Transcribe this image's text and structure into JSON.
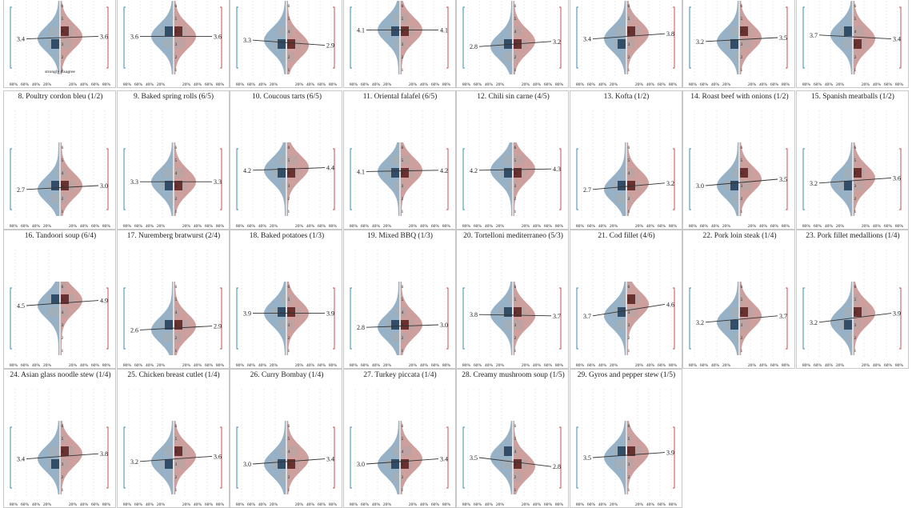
{
  "labels": {
    "strongly_disagree": "strongly disagree"
  },
  "x_tick_labels": [
    "80%",
    "60%",
    "40%",
    "20%",
    "20%",
    "40%",
    "60%",
    "80%"
  ],
  "likert_ticks": [
    "1",
    "2",
    "3",
    "4",
    "5",
    "6"
  ],
  "colors": {
    "left_fill": "#7d9fb9",
    "left_bar": "#1f3c58",
    "left_bracket": "#3a8bb2",
    "right_fill": "#c08784",
    "right_bar": "#5c1d1d",
    "right_bracket": "#c0504d"
  },
  "chart_data": {
    "type": "violin-likert-small-multiples",
    "panels": [
      {
        "title": "",
        "left_mean": "3.4",
        "right_mean": "3.6",
        "l": 3.4,
        "r": 3.6,
        "cut": "top"
      },
      {
        "title": "",
        "left_mean": "3.6",
        "right_mean": "3.6",
        "l": 3.6,
        "r": 3.6,
        "cut": "top"
      },
      {
        "title": "",
        "left_mean": "3.3",
        "right_mean": "2.9",
        "l": 3.3,
        "r": 2.9,
        "cut": "top"
      },
      {
        "title": "",
        "left_mean": "4.1",
        "right_mean": "4.1",
        "l": 4.1,
        "r": 4.1,
        "cut": "top"
      },
      {
        "title": "",
        "left_mean": "2.8",
        "right_mean": "3.2",
        "l": 2.8,
        "r": 3.2,
        "cut": "top"
      },
      {
        "title": "",
        "left_mean": "3.4",
        "right_mean": "3.8",
        "l": 3.4,
        "r": 3.8,
        "cut": "top"
      },
      {
        "title": "",
        "left_mean": "3.2",
        "right_mean": "3.5",
        "l": 3.2,
        "r": 3.5,
        "cut": "top"
      },
      {
        "title": "",
        "left_mean": "3.7",
        "right_mean": "3.4",
        "l": 3.7,
        "r": 3.4,
        "cut": "top"
      },
      {
        "title": "8. Poultry cordon bleu (1/2)",
        "left_mean": "2.7",
        "right_mean": "3.0",
        "l": 2.7,
        "r": 3.0
      },
      {
        "title": "9. Baked spring rolls (6/5)",
        "left_mean": "3.3",
        "right_mean": "3.3",
        "l": 3.3,
        "r": 3.3
      },
      {
        "title": "10. Coucous tarts (6/5)",
        "left_mean": "4.2",
        "right_mean": "4.4",
        "l": 4.2,
        "r": 4.4
      },
      {
        "title": "11. Oriental falafel (6/5)",
        "left_mean": "4.1",
        "right_mean": "4.2",
        "l": 4.1,
        "r": 4.2
      },
      {
        "title": "12. Chili sin carne (4/5)",
        "left_mean": "4.2",
        "right_mean": "4.3",
        "l": 4.2,
        "r": 4.3
      },
      {
        "title": "13. Kofta (1/2)",
        "left_mean": "2.7",
        "right_mean": "3.2",
        "l": 2.7,
        "r": 3.2
      },
      {
        "title": "14. Roast beef with onions (1/2)",
        "left_mean": "3.0",
        "right_mean": "3.5",
        "l": 3.0,
        "r": 3.5
      },
      {
        "title": "15. Spanish meatballs (1/2)",
        "left_mean": "3.2",
        "right_mean": "3.6",
        "l": 3.2,
        "r": 3.6
      },
      {
        "title": "16. Tandoori soup (6/4)",
        "left_mean": "4.5",
        "right_mean": "4.9",
        "l": 4.5,
        "r": 4.9
      },
      {
        "title": "17. Nuremberg bratwurst (2/4)",
        "left_mean": "2.6",
        "right_mean": "2.9",
        "l": 2.6,
        "r": 2.9
      },
      {
        "title": "18. Baked potatoes (1/3)",
        "left_mean": "3.9",
        "right_mean": "3.9",
        "l": 3.9,
        "r": 3.9
      },
      {
        "title": "19. Mixed BBQ (1/3)",
        "left_mean": "2.8",
        "right_mean": "3.0",
        "l": 2.8,
        "r": 3.0
      },
      {
        "title": "20. Tortelloni mediterraneo (5/3)",
        "left_mean": "3.8",
        "right_mean": "3.7",
        "l": 3.8,
        "r": 3.7
      },
      {
        "title": "21. Cod fillet (4/6)",
        "left_mean": "3.7",
        "right_mean": "4.6",
        "l": 3.7,
        "r": 4.6
      },
      {
        "title": "22. Pork loin steak (1/4)",
        "left_mean": "3.2",
        "right_mean": "3.7",
        "l": 3.2,
        "r": 3.7
      },
      {
        "title": "23. Pork fillet medallions (1/4)",
        "left_mean": "3.2",
        "right_mean": "3.9",
        "l": 3.2,
        "r": 3.9
      },
      {
        "title": "24. Asian glass noodle stew (1/4)",
        "left_mean": "3.4",
        "right_mean": "3.8",
        "l": 3.4,
        "r": 3.8,
        "cut": "bottom"
      },
      {
        "title": "25. Chicken breast cutlet (1/4)",
        "left_mean": "3.2",
        "right_mean": "3.6",
        "l": 3.2,
        "r": 3.6,
        "cut": "bottom"
      },
      {
        "title": "26. Curry Bombay (1/4)",
        "left_mean": "3.0",
        "right_mean": "3.4",
        "l": 3.0,
        "r": 3.4,
        "cut": "bottom"
      },
      {
        "title": "27. Turkey piccata (1/4)",
        "left_mean": "3.0",
        "right_mean": "3.4",
        "l": 3.0,
        "r": 3.4,
        "cut": "bottom"
      },
      {
        "title": "28. Creamy mushroom soup (1/5)",
        "left_mean": "3.5",
        "right_mean": "2.8",
        "l": 3.5,
        "r": 2.8,
        "cut": "bottom"
      },
      {
        "title": "29. Gyros and pepper stew (1/5)",
        "left_mean": "3.5",
        "right_mean": "3.9",
        "l": 3.5,
        "r": 3.9,
        "cut": "bottom"
      }
    ]
  }
}
